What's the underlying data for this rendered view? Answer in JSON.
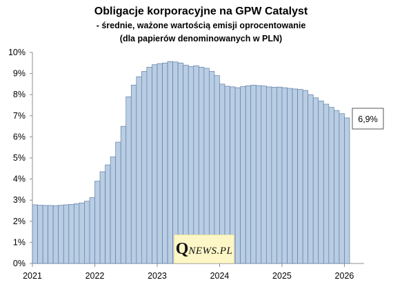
{
  "chart_data": {
    "type": "bar",
    "title": "Obligacje korporacyjne na GPW Catalyst",
    "subtitle_lines": [
      "- średnie, ważone wartością emisji oprocentowanie",
      "(dla papierów denominowanych w PLN)"
    ],
    "xlabel": "",
    "ylabel": "",
    "ylim": [
      0,
      10
    ],
    "y_ticks": [
      "0%",
      "1%",
      "2%",
      "3%",
      "4%",
      "5%",
      "6%",
      "7%",
      "8%",
      "9%",
      "10%"
    ],
    "x_ticks": [
      "2021",
      "2022",
      "2023",
      "2024",
      "2025",
      "2026"
    ],
    "grid": false,
    "bar_color": "#b9cde3",
    "bar_edge_color": "#5f7ea6",
    "series": [
      {
        "values": [
          2.78,
          2.76,
          2.75,
          2.75,
          2.74,
          2.76,
          2.78,
          2.8,
          2.83,
          2.87,
          2.95,
          3.12,
          3.9,
          4.35,
          4.67,
          5.05,
          5.75,
          6.5,
          7.9,
          8.45,
          8.85,
          9.1,
          9.3,
          9.42,
          9.47,
          9.5,
          9.57,
          9.55,
          9.5,
          9.4,
          9.33,
          9.37,
          9.3,
          9.25,
          9.1,
          8.9,
          8.5,
          8.4,
          8.37,
          8.33,
          8.38,
          8.42,
          8.45,
          8.43,
          8.41,
          8.37,
          8.35,
          8.36,
          8.33,
          8.3,
          8.27,
          8.25,
          8.2,
          8.0,
          7.85,
          7.7,
          7.55,
          7.4,
          7.25,
          7.1,
          6.9
        ]
      }
    ],
    "annotation": {
      "label": "6,9%",
      "value": 6.9
    }
  },
  "watermark": {
    "text_q": "Q",
    "text_rest": "NEWS.PL"
  }
}
